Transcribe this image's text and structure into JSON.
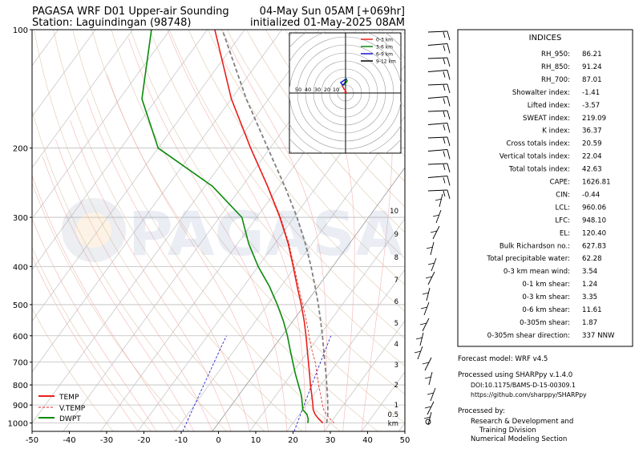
{
  "header": {
    "title_left_1": "PAGASA WRF D01 Upper-air Sounding",
    "title_left_2": "Station: Laguindingan (98748)",
    "title_right_1": "04-May Sun 05AM [+069hr]",
    "title_right_2": "initialized 01-May-2025 08AM"
  },
  "watermark": "PAGASA",
  "chart_data": [
    {
      "type": "line",
      "subtype": "skew-t",
      "x_ticks": [
        -50,
        -40,
        -30,
        -20,
        -10,
        0,
        10,
        20,
        30,
        40,
        50
      ],
      "y_ticks": [
        100,
        200,
        300,
        400,
        500,
        600,
        700,
        800,
        900,
        1000
      ],
      "xlim": [
        -50,
        50
      ],
      "ylim": [
        1050,
        100
      ],
      "y_scale": "log",
      "km_labels": [
        "10",
        "9",
        "8",
        "7",
        "6",
        "5",
        "4",
        "3",
        "2",
        "1",
        "0.5",
        "km"
      ],
      "legend": [
        {
          "name": "TEMP",
          "color": "#e8201c",
          "style": "solid"
        },
        {
          "name": "V.TEMP",
          "color": "#e8201c",
          "style": "dashed"
        },
        {
          "name": "DWPT",
          "color": "#0a8a0a",
          "style": "solid"
        }
      ],
      "legend_position": "bottom-left",
      "series": [
        {
          "name": "TEMP",
          "pressure": [
            1000,
            975,
            950,
            925,
            900,
            850,
            800,
            750,
            700,
            650,
            600,
            550,
            500,
            450,
            400,
            350,
            300,
            250,
            200,
            150,
            100
          ],
          "values": [
            28.0,
            26.0,
            24.2,
            22.8,
            21.8,
            19.6,
            17.2,
            14.8,
            12.2,
            9.4,
            6.4,
            3.0,
            -1.0,
            -5.6,
            -10.6,
            -16.4,
            -23.8,
            -33.2,
            -45.2,
            -60.0,
            -78.0
          ]
        },
        {
          "name": "V.TEMP",
          "pressure": [
            1000,
            975,
            950,
            925,
            900,
            850,
            800,
            750,
            700,
            650,
            600,
            550,
            500,
            450,
            400,
            350,
            300,
            250,
            200,
            150,
            100
          ],
          "values": [
            31.0,
            29.0,
            27.2,
            25.6,
            24.4,
            22.0,
            19.4,
            16.8,
            14.0,
            10.6,
            7.2,
            3.6,
            -0.6,
            -5.2,
            -10.4,
            -16.2,
            -23.6,
            -33.1,
            -45.1,
            -60.0,
            -78.0
          ]
        },
        {
          "name": "DWPT",
          "pressure": [
            1000,
            975,
            950,
            925,
            900,
            850,
            800,
            750,
            700,
            650,
            600,
            550,
            500,
            450,
            400,
            350,
            300,
            250,
            200,
            150,
            100
          ],
          "values": [
            24.0,
            23.2,
            22.0,
            20.0,
            19.0,
            16.8,
            14.0,
            11.0,
            8.0,
            4.8,
            1.4,
            -2.6,
            -7.4,
            -13.0,
            -20.0,
            -27.0,
            -34.0,
            -48.0,
            -70.0,
            -84.0,
            -95.0
          ]
        },
        {
          "name": "Parcel",
          "pressure": [
            1000,
            950,
            900,
            850,
            800,
            750,
            700,
            650,
            600,
            550,
            500,
            450,
            400,
            350,
            300,
            250,
            200,
            150,
            100
          ],
          "values": [
            29.0,
            27.6,
            25.8,
            23.8,
            21.6,
            19.2,
            16.6,
            13.8,
            10.8,
            7.4,
            3.6,
            -0.8,
            -5.8,
            -11.8,
            -19.2,
            -28.6,
            -40.6,
            -56.0,
            -76.0
          ]
        }
      ]
    },
    {
      "type": "scatter",
      "subtype": "hodograph",
      "ring_labels": [
        "50",
        "40",
        "30",
        "20",
        "10"
      ],
      "legend": [
        {
          "name": "0-3 km",
          "color": "#e8201c"
        },
        {
          "name": "3-6 km",
          "color": "#0a8a0a"
        },
        {
          "name": "6-9 km",
          "color": "#1414d0"
        },
        {
          "name": "9-12 km",
          "color": "#000000"
        }
      ],
      "legend_position": "top-right"
    }
  ],
  "indices": {
    "title": "INDICES",
    "rows": [
      {
        "label": "RH_950:",
        "value": "86.21"
      },
      {
        "label": "RH_850:",
        "value": "91.24"
      },
      {
        "label": "RH_700:",
        "value": "87.01"
      },
      {
        "label": "Showalter index:",
        "value": "-1.41"
      },
      {
        "label": "Lifted index:",
        "value": "-3.57"
      },
      {
        "label": "SWEAT index:",
        "value": "219.09"
      },
      {
        "label": "K index:",
        "value": "36.37"
      },
      {
        "label": "Cross totals index:",
        "value": "20.59"
      },
      {
        "label": "Vertical totals index:",
        "value": "22.04"
      },
      {
        "label": "Total totals index:",
        "value": "42.63"
      },
      {
        "label": "CAPE:",
        "value": "1626.81"
      },
      {
        "label": "CIN:",
        "value": "-0.44"
      },
      {
        "label": "LCL:",
        "value": "960.06"
      },
      {
        "label": "LFC:",
        "value": "948.10"
      },
      {
        "label": "EL:",
        "value": "120.40"
      },
      {
        "label": "Bulk Richardson no.:",
        "value": "627.83"
      },
      {
        "label": "Total precipitable water:",
        "value": "62.28"
      },
      {
        "label": "0-3 km mean wind:",
        "value": "3.54"
      },
      {
        "label": "0-1 km shear:",
        "value": "1.24"
      },
      {
        "label": "0-3 km shear:",
        "value": "3.35"
      },
      {
        "label": "0-6 km shear:",
        "value": "11.61"
      },
      {
        "label": "0-305m shear:",
        "value": "1.87"
      },
      {
        "label": "0-305m shear direction:",
        "value": "337 NNW"
      }
    ]
  },
  "footer": {
    "forecast_model": "Forecast model: WRF v4.5",
    "processed_using": "Processed using SHARPpy v.1.4.0",
    "doi": "DOI:10.1175/BAMS-D-15-00309.1",
    "url": "https://github.com/sharppy/SHARPpy",
    "processed_by": "Processed by:",
    "org_1": "Research & Development and",
    "org_2": "Training Division",
    "org_3": "Numerical Modeling Section"
  },
  "colors": {
    "temp": "#e8201c",
    "dwpt": "#0a8a0a",
    "parcel": "#808080",
    "mixing_ratio": "#1414d0",
    "isotherm": "#c8c8c8",
    "dry_adiabat": "#d2b48c",
    "moist_adiabat": "#f3a0a0",
    "wind_barb": "#000000"
  }
}
